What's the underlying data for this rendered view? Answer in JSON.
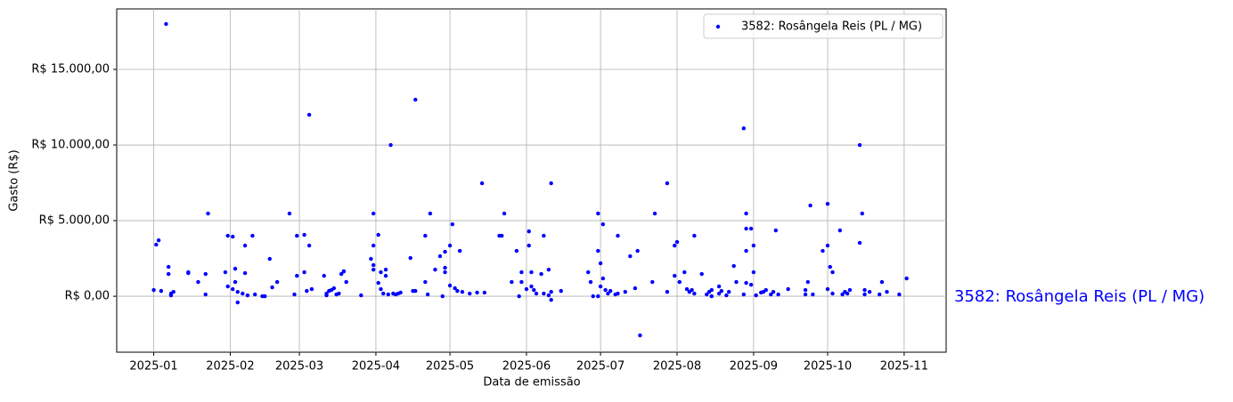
{
  "chart_data": {
    "type": "scatter",
    "x_label": "Data de emissão",
    "y_label": "Gasto (R$)",
    "annotation": "3582: Rosângela Reis (PL / MG)",
    "legend": "upper right",
    "grid": true,
    "xlim": [
      -15,
      321
    ],
    "ylim": [
      -3700,
      19000
    ],
    "xticks": [
      {
        "value": 0,
        "label": "2025-01"
      },
      {
        "value": 31,
        "label": "2025-02"
      },
      {
        "value": 59,
        "label": "2025-03"
      },
      {
        "value": 90,
        "label": "2025-04"
      },
      {
        "value": 120,
        "label": "2025-05"
      },
      {
        "value": 151,
        "label": "2025-06"
      },
      {
        "value": 181,
        "label": "2025-07"
      },
      {
        "value": 212,
        "label": "2025-08"
      },
      {
        "value": 243,
        "label": "2025-09"
      },
      {
        "value": 273,
        "label": "2025-10"
      },
      {
        "value": 304,
        "label": "2025-11"
      }
    ],
    "yticks": [
      {
        "value": 0,
        "label": "R$ 0,00"
      },
      {
        "value": 5000,
        "label": "R$ 5.000,00"
      },
      {
        "value": 10000,
        "label": "R$ 10.000,00"
      },
      {
        "value": 15000,
        "label": "R$ 15.000,00"
      }
    ],
    "series": [
      {
        "name": "3582: Rosângela Reis (PL / MG)",
        "color": "#0000ff",
        "x": [
          0,
          1,
          2,
          3,
          5,
          6,
          6,
          7,
          7,
          8,
          14,
          14,
          18,
          21,
          21,
          22,
          29,
          30,
          30,
          32,
          32,
          33,
          33,
          34,
          34,
          36,
          37,
          37,
          38,
          40,
          41,
          44,
          45,
          47,
          48,
          50,
          55,
          57,
          58,
          58,
          61,
          61,
          62,
          63,
          63,
          64,
          69,
          70,
          70,
          71,
          72,
          73,
          74,
          75,
          76,
          77,
          77,
          78,
          84,
          88,
          89,
          89,
          89,
          89,
          91,
          91,
          92,
          92,
          93,
          94,
          94,
          95,
          96,
          97,
          98,
          99,
          100,
          104,
          105,
          106,
          106,
          110,
          110,
          111,
          112,
          114,
          116,
          117,
          118,
          118,
          118,
          120,
          120,
          121,
          122,
          123,
          124,
          125,
          128,
          131,
          133,
          134,
          140,
          141,
          142,
          145,
          147,
          148,
          149,
          149,
          151,
          152,
          152,
          153,
          153,
          154,
          155,
          157,
          158,
          158,
          160,
          160,
          161,
          161,
          161,
          165,
          176,
          177,
          178,
          180,
          180,
          180,
          181,
          181,
          182,
          182,
          183,
          184,
          185,
          187,
          188,
          188,
          191,
          193,
          195,
          196,
          197,
          202,
          203,
          208,
          208,
          211,
          211,
          212,
          213,
          215,
          216,
          217,
          218,
          219,
          219,
          222,
          224,
          225,
          226,
          226,
          229,
          229,
          230,
          232,
          233,
          235,
          236,
          239,
          239,
          240,
          240,
          240,
          240,
          242,
          242,
          243,
          243,
          244,
          246,
          247,
          248,
          250,
          251,
          252,
          253,
          257,
          264,
          264,
          265,
          266,
          267,
          271,
          273,
          273,
          273,
          274,
          275,
          275,
          278,
          279,
          280,
          281,
          282,
          286,
          286,
          287,
          288,
          288,
          290,
          294,
          295,
          297,
          302,
          305
        ],
        "values": [
          410,
          3410,
          3700,
          350,
          18000,
          1940,
          1470,
          60,
          180,
          290,
          1590,
          1530,
          940,
          1470,
          120,
          5470,
          1590,
          4000,
          650,
          3940,
          470,
          1820,
          940,
          290,
          -410,
          180,
          3350,
          1530,
          60,
          4000,
          120,
          0,
          0,
          2470,
          590,
          940,
          5470,
          120,
          1350,
          4000,
          4060,
          1590,
          350,
          12000,
          3350,
          470,
          1350,
          180,
          60,
          350,
          410,
          530,
          120,
          180,
          1470,
          1650,
          1650,
          940,
          60,
          2470,
          5470,
          2060,
          1760,
          3350,
          4060,
          880,
          1590,
          470,
          180,
          1760,
          1350,
          120,
          10000,
          180,
          120,
          180,
          240,
          2530,
          350,
          350,
          13000,
          940,
          4000,
          120,
          5470,
          1760,
          2650,
          0,
          2940,
          1880,
          1590,
          710,
          3350,
          4760,
          530,
          350,
          3000,
          290,
          180,
          240,
          7470,
          240,
          4000,
          4000,
          5470,
          940,
          3000,
          0,
          1590,
          940,
          470,
          4290,
          3350,
          650,
          1590,
          410,
          180,
          1470,
          4000,
          180,
          60,
          1760,
          7470,
          -240,
          290,
          350,
          1590,
          940,
          0,
          0,
          3000,
          5470,
          2180,
          650,
          4760,
          1180,
          410,
          180,
          350,
          120,
          4000,
          180,
          290,
          2650,
          530,
          3000,
          -2590,
          940,
          5470,
          290,
          7470,
          1350,
          3350,
          3590,
          940,
          1590,
          470,
          290,
          410,
          180,
          4000,
          1470,
          120,
          290,
          410,
          0,
          650,
          180,
          350,
          60,
          290,
          2000,
          940,
          120,
          11100,
          4470,
          5470,
          3000,
          880,
          760,
          4470,
          1590,
          3350,
          60,
          240,
          290,
          410,
          120,
          290,
          4350,
          120,
          470,
          120,
          410,
          940,
          6000,
          120,
          3000,
          3350,
          6110,
          470,
          1940,
          1590,
          180,
          4350,
          120,
          290,
          180,
          410,
          3530,
          10000,
          5470,
          410,
          120,
          290,
          120,
          940,
          290,
          120,
          1180
        ]
      }
    ]
  }
}
